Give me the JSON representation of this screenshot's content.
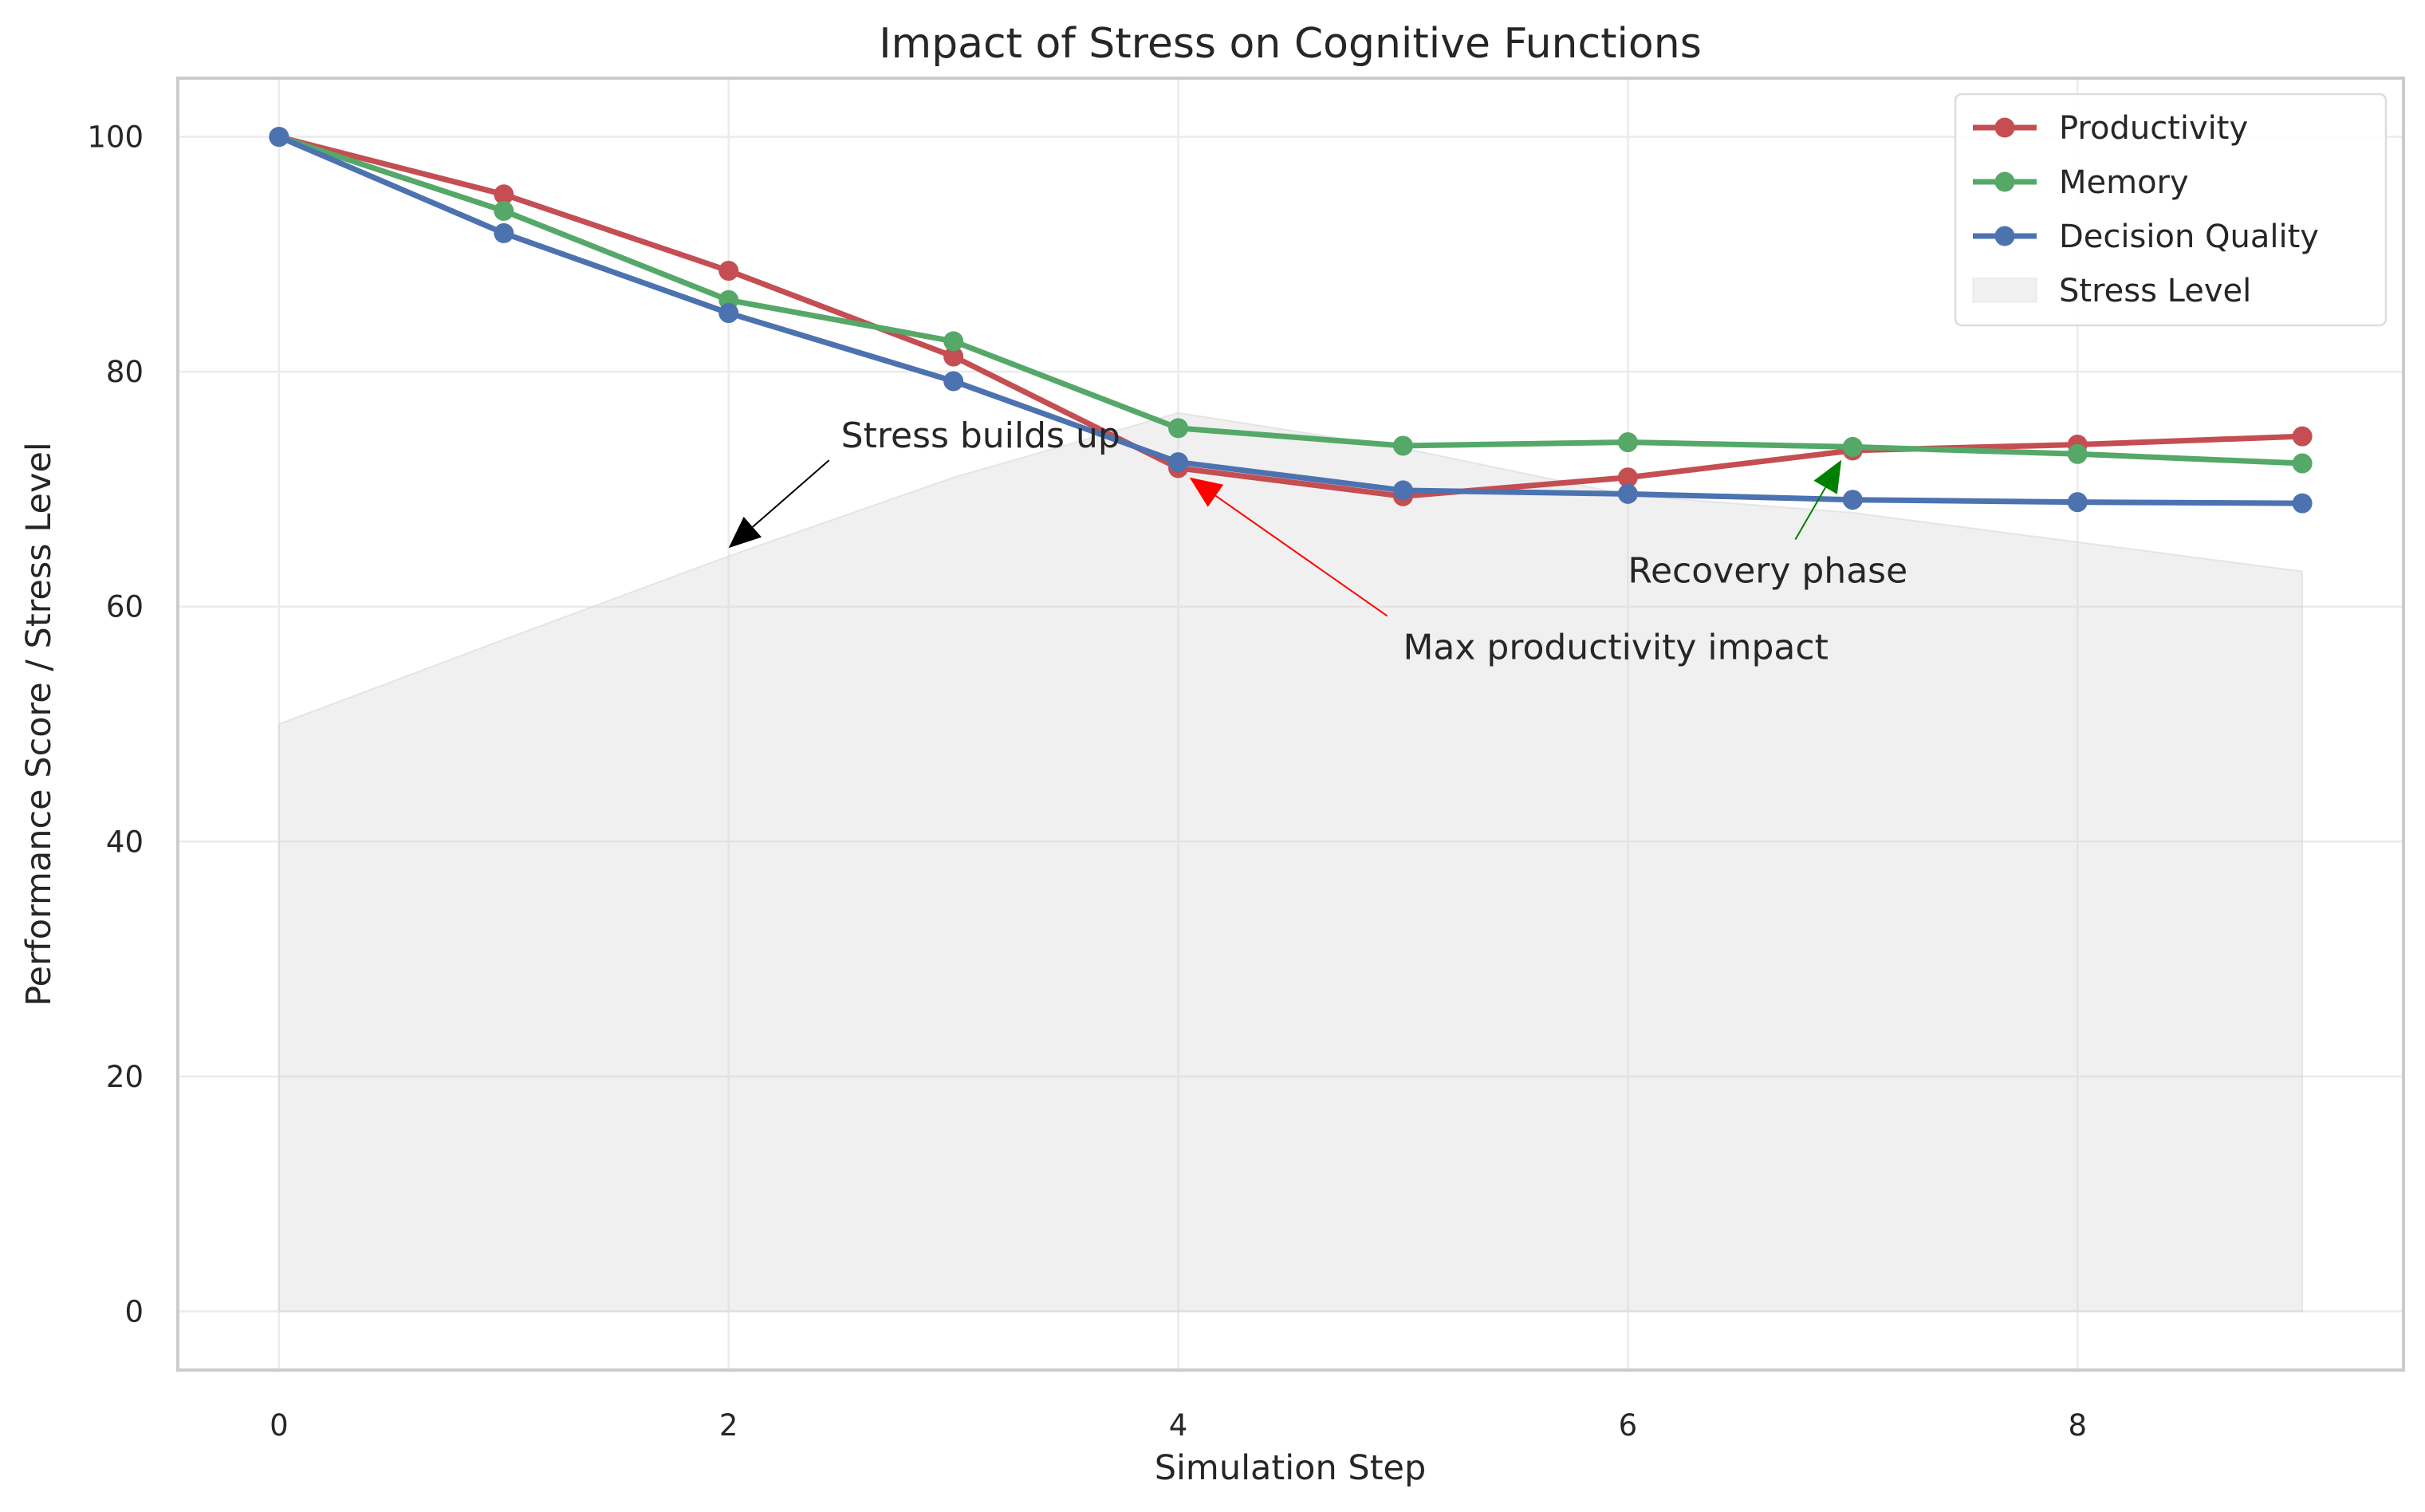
{
  "chart_data": {
    "type": "line",
    "title": "Impact of Stress on Cognitive Functions",
    "xlabel": "Simulation Step",
    "ylabel": "Performance Score / Stress Level",
    "xlim": [
      -0.45,
      9.45
    ],
    "ylim": [
      -5,
      105
    ],
    "x_ticks": [
      0,
      2,
      4,
      6,
      8
    ],
    "y_ticks": [
      0,
      20,
      40,
      60,
      80,
      100
    ],
    "grid": true,
    "legend_position": "top-right",
    "x": [
      0,
      1,
      2,
      3,
      4,
      5,
      6,
      7,
      8,
      9
    ],
    "series": [
      {
        "name": "Productivity",
        "color": "#c44e52",
        "kind": "line",
        "values": [
          100,
          95.1,
          88.6,
          81.3,
          71.8,
          69.4,
          71.0,
          73.3,
          73.8,
          74.5
        ]
      },
      {
        "name": "Memory",
        "color": "#55a868",
        "kind": "line",
        "values": [
          100,
          93.7,
          86.1,
          82.6,
          75.2,
          73.7,
          74.0,
          73.6,
          73.0,
          72.2
        ]
      },
      {
        "name": "Decision Quality",
        "color": "#4c72b0",
        "kind": "line",
        "values": [
          100,
          91.8,
          85.0,
          79.2,
          72.3,
          69.9,
          69.6,
          69.1,
          68.9,
          68.8
        ]
      },
      {
        "name": "Stress Level",
        "color": "#d3d3d3",
        "kind": "area",
        "values": [
          50,
          57.2,
          64.3,
          71.0,
          76.5,
          73.5,
          69.5,
          68.0,
          65.5,
          63.0
        ]
      }
    ],
    "annotations": [
      {
        "text": "Stress builds up",
        "xy": [
          2.0,
          65.0
        ],
        "xytext": [
          2.5,
          74.5
        ],
        "color": "#000000"
      },
      {
        "text": "Max productivity impact",
        "xy": [
          4.05,
          71.0
        ],
        "xytext": [
          5.0,
          56.5
        ],
        "color": "#ff0000"
      },
      {
        "text": "Recovery phase",
        "xy": [
          6.95,
          72.5
        ],
        "xytext": [
          6.0,
          63.0
        ],
        "color": "#008000"
      }
    ]
  }
}
